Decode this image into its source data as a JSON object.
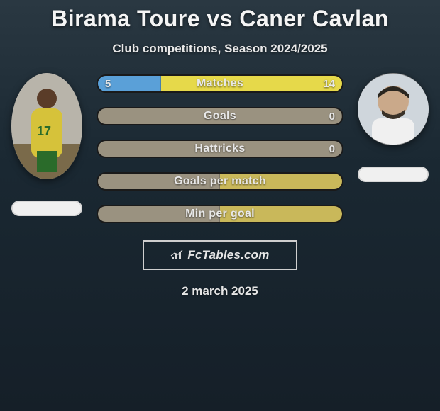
{
  "title": "Birama Toure vs Caner Cavlan",
  "subtitle": "Club competitions, Season 2024/2025",
  "date": "2 march 2025",
  "brand": "FcTables.com",
  "colors": {
    "left_fill": "#5aa0d8",
    "right_fill": "#e6d94a",
    "neutral_left": "#9a9280",
    "neutral_right": "#c9b85a"
  },
  "stats": [
    {
      "label": "Matches",
      "left_val": "5",
      "right_val": "14",
      "left_pct": 26,
      "right_pct": 74,
      "left_color": "#5aa0d8",
      "right_color": "#e6d94a"
    },
    {
      "label": "Goals",
      "left_val": "",
      "right_val": "0",
      "left_pct": 100,
      "right_pct": 0,
      "left_color": "#9a9280",
      "right_color": "#c9b85a"
    },
    {
      "label": "Hattricks",
      "left_val": "",
      "right_val": "0",
      "left_pct": 100,
      "right_pct": 0,
      "left_color": "#9a9280",
      "right_color": "#c9b85a"
    },
    {
      "label": "Goals per match",
      "left_val": "",
      "right_val": "",
      "left_pct": 50,
      "right_pct": 50,
      "left_color": "#9a9280",
      "right_color": "#c9b85a"
    },
    {
      "label": "Min per goal",
      "left_val": "",
      "right_val": "",
      "left_pct": 50,
      "right_pct": 50,
      "left_color": "#9a9280",
      "right_color": "#c9b85a"
    }
  ],
  "players": {
    "left": {
      "name": "Birama Toure",
      "shirt_color": "#d6c23a",
      "shorts_color": "#2a6b2a"
    },
    "right": {
      "name": "Caner Cavlan",
      "shirt_color": "#f0f0f0"
    }
  }
}
